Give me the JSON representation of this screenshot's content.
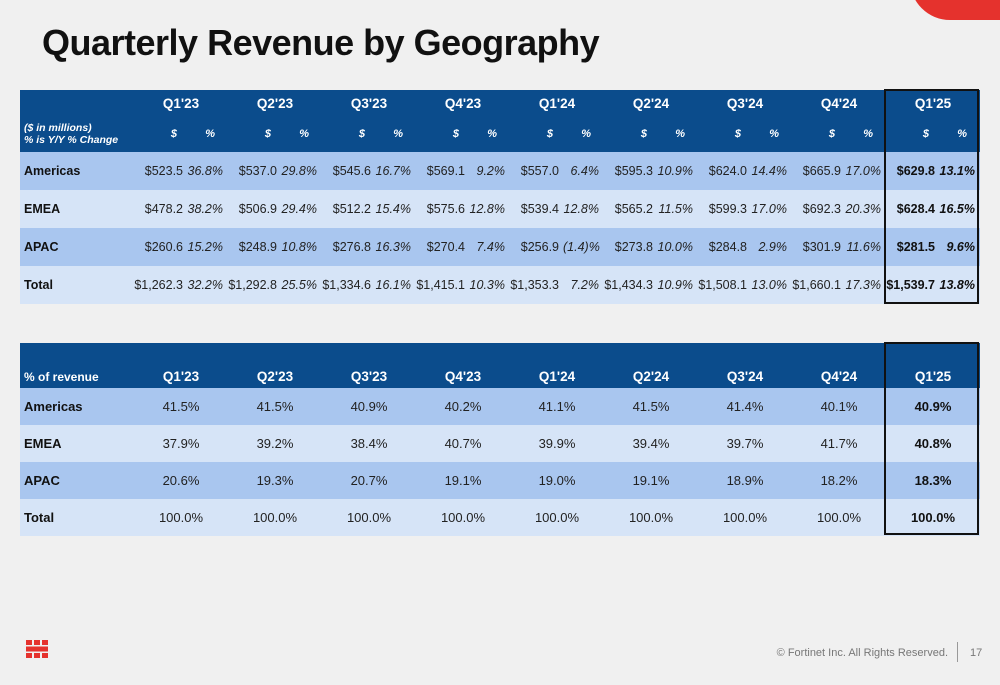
{
  "title": "Quarterly Revenue by Geography",
  "colors": {
    "header": "#0b4c8c",
    "row_dark": "#a9c6ef",
    "row_light": "#d6e4f7",
    "accent": "#e5322d"
  },
  "revenue_table": {
    "header_label_line1": "($ in millions)",
    "header_label_line2": "% is Y/Y % Change",
    "quarters": [
      "Q1'23",
      "Q2'23",
      "Q3'23",
      "Q4'23",
      "Q1'24",
      "Q2'24",
      "Q3'24",
      "Q4'24",
      "Q1'25"
    ],
    "dollar_label": "$",
    "pct_label": "%",
    "rows": [
      {
        "label": "Americas",
        "cells": [
          [
            "$523.5",
            "36.8%"
          ],
          [
            "$537.0",
            "29.8%"
          ],
          [
            "$545.6",
            "16.7%"
          ],
          [
            "$569.1",
            "9.2%"
          ],
          [
            "$557.0",
            "6.4%"
          ],
          [
            "$595.3",
            "10.9%"
          ],
          [
            "$624.0",
            "14.4%"
          ],
          [
            "$665.9",
            "17.0%"
          ],
          [
            "$629.8",
            "13.1%"
          ]
        ]
      },
      {
        "label": "EMEA",
        "cells": [
          [
            "$478.2",
            "38.2%"
          ],
          [
            "$506.9",
            "29.4%"
          ],
          [
            "$512.2",
            "15.4%"
          ],
          [
            "$575.6",
            "12.8%"
          ],
          [
            "$539.4",
            "12.8%"
          ],
          [
            "$565.2",
            "11.5%"
          ],
          [
            "$599.3",
            "17.0%"
          ],
          [
            "$692.3",
            "20.3%"
          ],
          [
            "$628.4",
            "16.5%"
          ]
        ]
      },
      {
        "label": "APAC",
        "cells": [
          [
            "$260.6",
            "15.2%"
          ],
          [
            "$248.9",
            "10.8%"
          ],
          [
            "$276.8",
            "16.3%"
          ],
          [
            "$270.4",
            "7.4%"
          ],
          [
            "$256.9",
            "(1.4)%"
          ],
          [
            "$273.8",
            "10.0%"
          ],
          [
            "$284.8",
            "2.9%"
          ],
          [
            "$301.9",
            "11.6%"
          ],
          [
            "$281.5",
            "9.6%"
          ]
        ]
      },
      {
        "label": "Total",
        "cells": [
          [
            "$1,262.3",
            "32.2%"
          ],
          [
            "$1,292.8",
            "25.5%"
          ],
          [
            "$1,334.6",
            "16.1%"
          ],
          [
            "$1,415.1",
            "10.3%"
          ],
          [
            "$1,353.3",
            "7.2%"
          ],
          [
            "$1,434.3",
            "10.9%"
          ],
          [
            "$1,508.1",
            "13.0%"
          ],
          [
            "$1,660.1",
            "17.3%"
          ],
          [
            "$1,539.7",
            "13.8%"
          ]
        ]
      }
    ]
  },
  "share_table": {
    "header_label": "% of revenue",
    "quarters": [
      "Q1'23",
      "Q2'23",
      "Q3'23",
      "Q4'23",
      "Q1'24",
      "Q2'24",
      "Q3'24",
      "Q4'24",
      "Q1'25"
    ],
    "rows": [
      {
        "label": "Americas",
        "values": [
          "41.5%",
          "41.5%",
          "40.9%",
          "40.2%",
          "41.1%",
          "41.5%",
          "41.4%",
          "40.1%",
          "40.9%"
        ]
      },
      {
        "label": "EMEA",
        "values": [
          "37.9%",
          "39.2%",
          "38.4%",
          "40.7%",
          "39.9%",
          "39.4%",
          "39.7%",
          "41.7%",
          "40.8%"
        ]
      },
      {
        "label": "APAC",
        "values": [
          "20.6%",
          "19.3%",
          "20.7%",
          "19.1%",
          "19.0%",
          "19.1%",
          "18.9%",
          "18.2%",
          "18.3%"
        ]
      },
      {
        "label": "Total",
        "values": [
          "100.0%",
          "100.0%",
          "100.0%",
          "100.0%",
          "100.0%",
          "100.0%",
          "100.0%",
          "100.0%",
          "100.0%"
        ]
      }
    ]
  },
  "footer": {
    "copyright": "© Fortinet Inc. All Rights Reserved.",
    "page_number": "17",
    "logo_icon": "fortinet-logo-icon"
  }
}
